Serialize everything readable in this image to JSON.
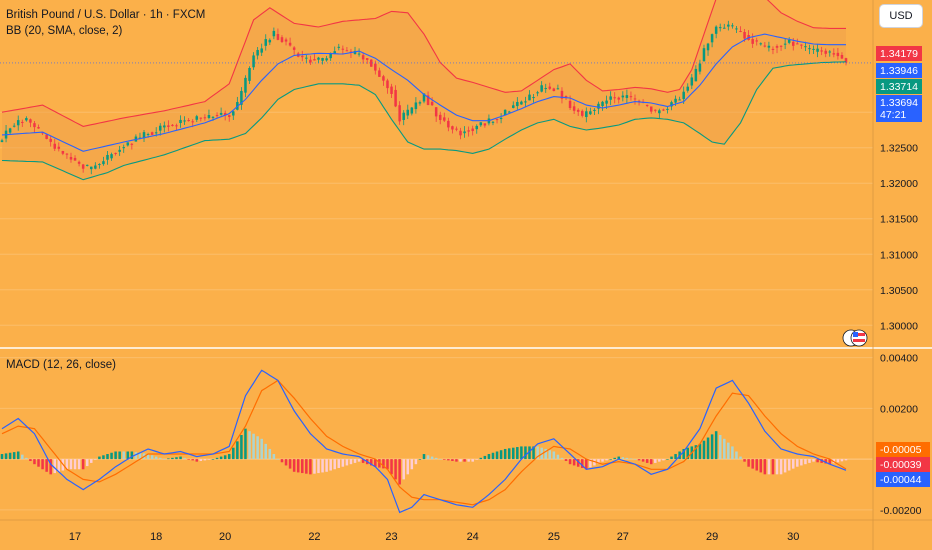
{
  "header": {
    "symbol_title": "British Pound / U.S. Dollar · 1h · FXCM",
    "bb_title": "BB (20, SMA, close, 2)",
    "currency": "USD"
  },
  "macd": {
    "title": "MACD (12, 26, close)"
  },
  "price_badges": {
    "upper": "1.34179",
    "basis": "1.33946",
    "lower": "1.33714",
    "last": "1.33694",
    "countdown": "47:21"
  },
  "macd_badges": {
    "a": "-0.00005",
    "b": "-0.00039",
    "c": "-0.00044"
  },
  "colors": {
    "background": "#fbb04a",
    "up": "#089981",
    "down": "#f23645",
    "bb_upper": "#f23645",
    "bb_basis": "#2962ff",
    "bb_lower": "#089981",
    "macd_line": "#2962ff",
    "signal_line": "#ff6d00"
  },
  "chart_data": [
    {
      "type": "candlestick",
      "title": "British Pound / U.S. Dollar · 1h · FXCM",
      "ylim": [
        1.2968,
        1.3458
      ],
      "y_ticks": [
        "1.33000",
        "1.32500",
        "1.32000",
        "1.31500",
        "1.31000",
        "1.30500",
        "1.30000"
      ],
      "x_ticks": [
        "17",
        "18",
        "20",
        "22",
        "23",
        "24",
        "25",
        "27",
        "29",
        "30"
      ],
      "series_name": "BB (20, SMA, close, 2)",
      "last_price": 1.33694,
      "bb_upper_last": 1.34179,
      "bb_basis_last": 1.33946,
      "bb_lower_last": 1.33714,
      "close_anchors": [
        [
          0,
          1.3262
        ],
        [
          2,
          1.328
        ],
        [
          6,
          1.329
        ],
        [
          10,
          1.3268
        ],
        [
          13,
          1.325
        ],
        [
          16,
          1.3238
        ],
        [
          19,
          1.3225
        ],
        [
          22,
          1.322
        ],
        [
          25,
          1.3232
        ],
        [
          29,
          1.325
        ],
        [
          34,
          1.3265
        ],
        [
          40,
          1.328
        ],
        [
          45,
          1.3288
        ],
        [
          50,
          1.3292
        ],
        [
          53,
          1.3298
        ],
        [
          56,
          1.3296
        ],
        [
          58,
          1.331
        ],
        [
          60,
          1.3345
        ],
        [
          62,
          1.3378
        ],
        [
          65,
          1.34
        ],
        [
          67,
          1.341
        ],
        [
          70,
          1.3398
        ],
        [
          73,
          1.3378
        ],
        [
          77,
          1.3372
        ],
        [
          80,
          1.3376
        ],
        [
          82,
          1.339
        ],
        [
          85,
          1.3385
        ],
        [
          88,
          1.338
        ],
        [
          90,
          1.3375
        ],
        [
          93,
          1.335
        ],
        [
          96,
          1.333
        ],
        [
          98,
          1.329
        ],
        [
          101,
          1.3305
        ],
        [
          104,
          1.3322
        ],
        [
          107,
          1.3298
        ],
        [
          110,
          1.328
        ],
        [
          113,
          1.327
        ],
        [
          116,
          1.3278
        ],
        [
          119,
          1.3285
        ],
        [
          122,
          1.329
        ],
        [
          125,
          1.3305
        ],
        [
          128,
          1.3315
        ],
        [
          131,
          1.3325
        ],
        [
          134,
          1.3338
        ],
        [
          137,
          1.333
        ],
        [
          140,
          1.331
        ],
        [
          143,
          1.3295
        ],
        [
          146,
          1.3305
        ],
        [
          149,
          1.3318
        ],
        [
          152,
          1.3322
        ],
        [
          155,
          1.332
        ],
        [
          158,
          1.3312
        ],
        [
          161,
          1.33
        ],
        [
          164,
          1.3308
        ],
        [
          167,
          1.332
        ],
        [
          170,
          1.3345
        ],
        [
          172,
          1.3372
        ],
        [
          174,
          1.34
        ],
        [
          176,
          1.3418
        ],
        [
          179,
          1.3422
        ],
        [
          182,
          1.3412
        ],
        [
          185,
          1.34
        ],
        [
          188,
          1.339
        ],
        [
          191,
          1.3393
        ],
        [
          194,
          1.3398
        ],
        [
          197,
          1.3392
        ],
        [
          200,
          1.3385
        ],
        [
          203,
          1.3386
        ],
        [
          206,
          1.338
        ],
        [
          208,
          1.3369
        ]
      ],
      "bb_upper": [
        [
          0,
          1.33
        ],
        [
          10,
          1.331
        ],
        [
          20,
          1.328
        ],
        [
          30,
          1.3292
        ],
        [
          40,
          1.3302
        ],
        [
          50,
          1.3315
        ],
        [
          56,
          1.334
        ],
        [
          62,
          1.343
        ],
        [
          66,
          1.3447
        ],
        [
          72,
          1.3425
        ],
        [
          78,
          1.342
        ],
        [
          84,
          1.3428
        ],
        [
          88,
          1.343
        ],
        [
          92,
          1.3432
        ],
        [
          96,
          1.3442
        ],
        [
          100,
          1.344
        ],
        [
          104,
          1.341
        ],
        [
          108,
          1.337
        ],
        [
          112,
          1.3348
        ],
        [
          116,
          1.3342
        ],
        [
          120,
          1.3335
        ],
        [
          124,
          1.3328
        ],
        [
          128,
          1.333
        ],
        [
          132,
          1.3345
        ],
        [
          136,
          1.336
        ],
        [
          140,
          1.3368
        ],
        [
          144,
          1.3345
        ],
        [
          148,
          1.333
        ],
        [
          152,
          1.3332
        ],
        [
          156,
          1.3335
        ],
        [
          160,
          1.3333
        ],
        [
          164,
          1.3328
        ],
        [
          167,
          1.3332
        ],
        [
          170,
          1.336
        ],
        [
          173,
          1.341
        ],
        [
          176,
          1.346
        ],
        [
          180,
          1.3478
        ],
        [
          184,
          1.3475
        ],
        [
          188,
          1.3462
        ],
        [
          192,
          1.344
        ],
        [
          196,
          1.3428
        ],
        [
          200,
          1.3419
        ],
        [
          204,
          1.3418
        ],
        [
          208,
          1.3418
        ]
      ],
      "bb_basis": [
        [
          0,
          1.3268
        ],
        [
          10,
          1.3272
        ],
        [
          20,
          1.3245
        ],
        [
          30,
          1.3258
        ],
        [
          40,
          1.327
        ],
        [
          50,
          1.3285
        ],
        [
          56,
          1.3298
        ],
        [
          60,
          1.3318
        ],
        [
          64,
          1.3345
        ],
        [
          68,
          1.3368
        ],
        [
          72,
          1.338
        ],
        [
          78,
          1.3383
        ],
        [
          84,
          1.3382
        ],
        [
          88,
          1.3386
        ],
        [
          92,
          1.3376
        ],
        [
          96,
          1.336
        ],
        [
          100,
          1.3345
        ],
        [
          104,
          1.3325
        ],
        [
          108,
          1.331
        ],
        [
          112,
          1.3296
        ],
        [
          116,
          1.3288
        ],
        [
          120,
          1.3288
        ],
        [
          124,
          1.3296
        ],
        [
          128,
          1.3305
        ],
        [
          132,
          1.3315
        ],
        [
          136,
          1.3322
        ],
        [
          140,
          1.332
        ],
        [
          144,
          1.331
        ],
        [
          148,
          1.3306
        ],
        [
          152,
          1.331
        ],
        [
          156,
          1.3315
        ],
        [
          160,
          1.3313
        ],
        [
          164,
          1.3308
        ],
        [
          168,
          1.3315
        ],
        [
          172,
          1.3338
        ],
        [
          176,
          1.3368
        ],
        [
          180,
          1.3392
        ],
        [
          184,
          1.3405
        ],
        [
          188,
          1.341
        ],
        [
          192,
          1.3405
        ],
        [
          196,
          1.34
        ],
        [
          200,
          1.3396
        ],
        [
          204,
          1.3395
        ],
        [
          208,
          1.3395
        ]
      ],
      "bb_lower": [
        [
          0,
          1.3232
        ],
        [
          10,
          1.323
        ],
        [
          20,
          1.3205
        ],
        [
          26,
          1.3215
        ],
        [
          30,
          1.3225
        ],
        [
          40,
          1.324
        ],
        [
          50,
          1.326
        ],
        [
          56,
          1.3262
        ],
        [
          60,
          1.327
        ],
        [
          64,
          1.3292
        ],
        [
          68,
          1.3318
        ],
        [
          72,
          1.3332
        ],
        [
          78,
          1.334
        ],
        [
          84,
          1.334
        ],
        [
          88,
          1.3338
        ],
        [
          92,
          1.3325
        ],
        [
          96,
          1.329
        ],
        [
          100,
          1.3258
        ],
        [
          104,
          1.3248
        ],
        [
          108,
          1.3248
        ],
        [
          112,
          1.3246
        ],
        [
          116,
          1.3242
        ],
        [
          120,
          1.3248
        ],
        [
          124,
          1.3262
        ],
        [
          128,
          1.3275
        ],
        [
          132,
          1.3285
        ],
        [
          136,
          1.329
        ],
        [
          140,
          1.328
        ],
        [
          144,
          1.3275
        ],
        [
          148,
          1.3278
        ],
        [
          152,
          1.3282
        ],
        [
          156,
          1.329
        ],
        [
          160,
          1.3292
        ],
        [
          164,
          1.329
        ],
        [
          168,
          1.3285
        ],
        [
          172,
          1.327
        ],
        [
          175,
          1.3258
        ],
        [
          178,
          1.3255
        ],
        [
          182,
          1.3285
        ],
        [
          186,
          1.3332
        ],
        [
          190,
          1.3362
        ],
        [
          194,
          1.3366
        ],
        [
          198,
          1.3368
        ],
        [
          202,
          1.337
        ],
        [
          208,
          1.3371
        ]
      ]
    },
    {
      "type": "line",
      "title": "MACD (12, 26, close)",
      "ylim": [
        -0.0024,
        0.0043
      ],
      "y_ticks": [
        "0.00400",
        "0.00200",
        "-0.00200"
      ],
      "macd_last": -0.00044,
      "signal_last": -0.00039,
      "histogram_last": -5e-05,
      "macd_line": [
        [
          0,
          0.0012
        ],
        [
          4,
          0.0016
        ],
        [
          8,
          0.001
        ],
        [
          12,
          -0.0002
        ],
        [
          16,
          -0.0008
        ],
        [
          20,
          -0.0012
        ],
        [
          24,
          -0.0008
        ],
        [
          28,
          -0.0003
        ],
        [
          32,
          0.0001
        ],
        [
          36,
          0.0004
        ],
        [
          40,
          0.0002
        ],
        [
          44,
          0.0003
        ],
        [
          48,
          0.0001
        ],
        [
          52,
          0.0002
        ],
        [
          56,
          0.0005
        ],
        [
          60,
          0.0025
        ],
        [
          64,
          0.0035
        ],
        [
          68,
          0.0031
        ],
        [
          72,
          0.0019
        ],
        [
          76,
          0.001
        ],
        [
          80,
          0.0004
        ],
        [
          84,
          0.0002
        ],
        [
          88,
          0.0001
        ],
        [
          92,
          -0.0003
        ],
        [
          95,
          -0.0008
        ],
        [
          98,
          -0.0021
        ],
        [
          101,
          -0.0019
        ],
        [
          104,
          -0.0014
        ],
        [
          108,
          -0.0016
        ],
        [
          112,
          -0.0018
        ],
        [
          116,
          -0.0019
        ],
        [
          120,
          -0.0014
        ],
        [
          124,
          -0.0008
        ],
        [
          128,
          0.0
        ],
        [
          132,
          0.0006
        ],
        [
          136,
          0.0008
        ],
        [
          140,
          0.0002
        ],
        [
          144,
          -0.0004
        ],
        [
          148,
          -0.0003
        ],
        [
          152,
          0.0
        ],
        [
          156,
          -0.0002
        ],
        [
          160,
          -0.0006
        ],
        [
          164,
          -0.0004
        ],
        [
          168,
          0.0003
        ],
        [
          172,
          0.0012
        ],
        [
          176,
          0.0028
        ],
        [
          180,
          0.0031
        ],
        [
          184,
          0.0022
        ],
        [
          188,
          0.0011
        ],
        [
          192,
          0.0004
        ],
        [
          196,
          0.0002
        ],
        [
          200,
          0.0001
        ],
        [
          204,
          -0.0002
        ],
        [
          208,
          -0.00044
        ]
      ],
      "signal_line": [
        [
          0,
          0.001
        ],
        [
          4,
          0.0013
        ],
        [
          8,
          0.0012
        ],
        [
          12,
          0.0004
        ],
        [
          16,
          -0.0004
        ],
        [
          20,
          -0.0008
        ],
        [
          24,
          -0.0009
        ],
        [
          28,
          -0.0006
        ],
        [
          32,
          -0.0002
        ],
        [
          36,
          0.0002
        ],
        [
          40,
          0.0002
        ],
        [
          44,
          0.0002
        ],
        [
          48,
          0.0002
        ],
        [
          52,
          0.0002
        ],
        [
          56,
          0.0003
        ],
        [
          60,
          0.0013
        ],
        [
          64,
          0.0027
        ],
        [
          68,
          0.0031
        ],
        [
          72,
          0.0024
        ],
        [
          76,
          0.0016
        ],
        [
          80,
          0.0009
        ],
        [
          84,
          0.0005
        ],
        [
          88,
          0.0002
        ],
        [
          92,
          0.0
        ],
        [
          95,
          -0.0004
        ],
        [
          98,
          -0.0011
        ],
        [
          101,
          -0.0015
        ],
        [
          104,
          -0.0016
        ],
        [
          108,
          -0.0016
        ],
        [
          112,
          -0.0017
        ],
        [
          116,
          -0.0018
        ],
        [
          120,
          -0.0016
        ],
        [
          124,
          -0.0012
        ],
        [
          128,
          -0.0005
        ],
        [
          132,
          0.0001
        ],
        [
          136,
          0.0005
        ],
        [
          140,
          0.0004
        ],
        [
          144,
          0.0
        ],
        [
          148,
          -0.0002
        ],
        [
          152,
          -0.0001
        ],
        [
          156,
          -0.0002
        ],
        [
          160,
          -0.0004
        ],
        [
          164,
          -0.0004
        ],
        [
          168,
          -0.0001
        ],
        [
          172,
          0.0006
        ],
        [
          176,
          0.0017
        ],
        [
          180,
          0.0026
        ],
        [
          184,
          0.0025
        ],
        [
          188,
          0.0017
        ],
        [
          192,
          0.001
        ],
        [
          196,
          0.0005
        ],
        [
          200,
          0.0002
        ],
        [
          204,
          0.0
        ],
        [
          208,
          -0.00039
        ]
      ]
    }
  ]
}
